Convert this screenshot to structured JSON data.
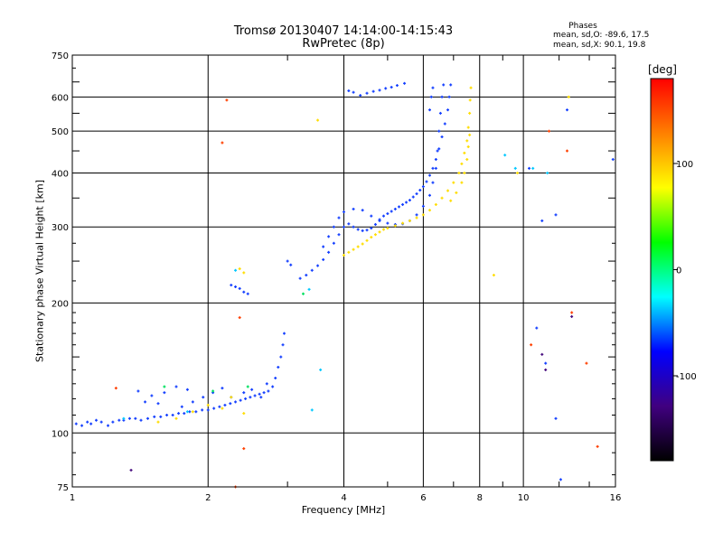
{
  "header": {
    "title_line1": "Tromsø 20130407 14:14:00-14:15:43",
    "title_line2": "RwPretec (8p)"
  },
  "stats": {
    "heading": "Phases",
    "o_line": "mean, sd,O: -89.6, 17.5",
    "x_line": "mean, sd,X:  90.1, 19.8"
  },
  "colorbar": {
    "title": "[deg]",
    "ticks": [
      100,
      0,
      -100
    ],
    "range": [
      -180,
      180
    ],
    "colors": [
      "#ff0000",
      "#ff8000",
      "#ffff00",
      "#00ff00",
      "#00ffff",
      "#0000ff",
      "#400080",
      "#000000"
    ]
  },
  "chart_data": {
    "type": "scatter",
    "title": "Tromsø 20130407 14:14:00-14:15:43",
    "subtitle": "RwPretec (8p)",
    "xlabel": "Frequency [MHz]",
    "ylabel": "Stationary phase Virtual Height [km]",
    "xscale": "log",
    "yscale": "log",
    "xlim": [
      1,
      16
    ],
    "ylim": [
      75,
      750
    ],
    "xticks": [
      1,
      2,
      4,
      6,
      8,
      10,
      16
    ],
    "xtick_labels": [
      "1",
      "2",
      "4",
      "6",
      "8",
      "10",
      "16"
    ],
    "yticks": [
      75,
      100,
      200,
      300,
      400,
      500,
      600,
      750
    ],
    "ytick_labels": [
      "75",
      "100",
      "200",
      "300",
      "400",
      "500",
      "600",
      "750"
    ],
    "grid": true,
    "colorbar_label": "[deg]",
    "colorbar_range": [
      -180,
      180
    ],
    "series": [
      {
        "mode": "O",
        "color": "#1540ff",
        "points": [
          [
            1.02,
            105
          ],
          [
            1.05,
            104
          ],
          [
            1.08,
            106
          ],
          [
            1.1,
            105
          ],
          [
            1.13,
            107
          ],
          [
            1.16,
            106
          ],
          [
            1.2,
            104
          ],
          [
            1.23,
            106
          ],
          [
            1.27,
            107
          ],
          [
            1.3,
            107
          ],
          [
            1.34,
            108
          ],
          [
            1.38,
            108
          ],
          [
            1.42,
            107
          ],
          [
            1.47,
            108
          ],
          [
            1.52,
            109
          ],
          [
            1.57,
            109
          ],
          [
            1.62,
            110
          ],
          [
            1.67,
            110
          ],
          [
            1.72,
            111
          ],
          [
            1.77,
            111
          ],
          [
            1.82,
            112
          ],
          [
            1.88,
            112
          ],
          [
            1.94,
            113
          ],
          [
            2.0,
            113
          ],
          [
            2.06,
            114
          ],
          [
            2.12,
            115
          ],
          [
            2.18,
            116
          ],
          [
            2.24,
            117
          ],
          [
            2.3,
            118
          ],
          [
            2.36,
            119
          ],
          [
            2.42,
            120
          ],
          [
            2.48,
            121
          ],
          [
            2.54,
            122
          ],
          [
            2.6,
            123
          ],
          [
            2.66,
            124
          ],
          [
            2.72,
            125
          ],
          [
            2.78,
            128
          ],
          [
            2.82,
            134
          ],
          [
            2.86,
            142
          ],
          [
            2.9,
            150
          ],
          [
            2.93,
            160
          ],
          [
            2.95,
            170
          ],
          [
            1.4,
            125
          ],
          [
            1.5,
            122
          ],
          [
            1.6,
            124
          ],
          [
            1.7,
            128
          ],
          [
            1.8,
            126
          ],
          [
            1.95,
            121
          ],
          [
            2.05,
            124
          ],
          [
            2.15,
            127
          ],
          [
            2.25,
            121
          ],
          [
            2.4,
            124
          ],
          [
            2.5,
            126
          ],
          [
            2.62,
            121
          ],
          [
            2.7,
            130
          ],
          [
            1.45,
            118
          ],
          [
            1.55,
            117
          ],
          [
            1.75,
            115
          ],
          [
            1.85,
            118
          ],
          [
            2.25,
            220
          ],
          [
            2.3,
            218
          ],
          [
            2.35,
            216
          ],
          [
            2.4,
            212
          ],
          [
            2.45,
            210
          ],
          [
            3.0,
            250
          ],
          [
            3.05,
            245
          ],
          [
            3.2,
            228
          ],
          [
            3.3,
            232
          ],
          [
            3.4,
            238
          ],
          [
            3.5,
            244
          ],
          [
            3.6,
            252
          ],
          [
            3.7,
            262
          ],
          [
            3.8,
            275
          ],
          [
            3.9,
            288
          ],
          [
            4.0,
            300
          ],
          [
            4.1,
            305
          ],
          [
            4.2,
            300
          ],
          [
            4.3,
            296
          ],
          [
            4.4,
            294
          ],
          [
            4.5,
            295
          ],
          [
            4.6,
            298
          ],
          [
            4.7,
            304
          ],
          [
            4.8,
            312
          ],
          [
            4.9,
            318
          ],
          [
            5.0,
            322
          ],
          [
            5.1,
            326
          ],
          [
            5.2,
            330
          ],
          [
            5.3,
            334
          ],
          [
            5.4,
            338
          ],
          [
            5.5,
            342
          ],
          [
            5.6,
            346
          ],
          [
            5.7,
            352
          ],
          [
            5.8,
            358
          ],
          [
            5.9,
            365
          ],
          [
            6.0,
            372
          ],
          [
            6.1,
            382
          ],
          [
            6.2,
            395
          ],
          [
            6.3,
            410
          ],
          [
            6.4,
            430
          ],
          [
            6.5,
            455
          ],
          [
            6.6,
            485
          ],
          [
            6.7,
            520
          ],
          [
            6.8,
            560
          ],
          [
            6.85,
            600
          ],
          [
            6.9,
            640
          ],
          [
            3.6,
            270
          ],
          [
            3.7,
            285
          ],
          [
            3.8,
            300
          ],
          [
            3.9,
            315
          ],
          [
            4.0,
            325
          ],
          [
            4.2,
            330
          ],
          [
            4.4,
            328
          ],
          [
            4.6,
            318
          ],
          [
            4.8,
            310
          ],
          [
            5.0,
            306
          ],
          [
            5.2,
            304
          ],
          [
            5.4,
            305
          ],
          [
            5.6,
            310
          ],
          [
            5.8,
            320
          ],
          [
            6.0,
            335
          ],
          [
            6.2,
            355
          ],
          [
            6.3,
            380
          ],
          [
            6.4,
            410
          ],
          [
            6.45,
            450
          ],
          [
            6.5,
            500
          ],
          [
            6.55,
            550
          ],
          [
            6.6,
            600
          ],
          [
            6.65,
            640
          ],
          [
            6.2,
            560
          ],
          [
            6.25,
            600
          ],
          [
            6.3,
            630
          ],
          [
            4.1,
            620
          ],
          [
            4.2,
            615
          ],
          [
            4.35,
            605
          ],
          [
            4.5,
            612
          ],
          [
            4.65,
            618
          ],
          [
            4.8,
            622
          ],
          [
            4.95,
            628
          ],
          [
            5.1,
            632
          ],
          [
            5.25,
            638
          ],
          [
            5.45,
            645
          ],
          [
            11.8,
            108
          ],
          [
            10.7,
            175
          ],
          [
            11.2,
            145
          ],
          [
            12.1,
            78
          ],
          [
            12.5,
            560
          ],
          [
            15.8,
            430
          ],
          [
            11.0,
            310
          ],
          [
            11.8,
            320
          ],
          [
            10.3,
            410
          ]
        ]
      },
      {
        "mode": "X",
        "color": "#ffdd00",
        "points": [
          [
            4.0,
            258
          ],
          [
            4.1,
            262
          ],
          [
            4.2,
            266
          ],
          [
            4.3,
            270
          ],
          [
            4.4,
            274
          ],
          [
            4.5,
            279
          ],
          [
            4.6,
            284
          ],
          [
            4.7,
            288
          ],
          [
            4.8,
            292
          ],
          [
            4.9,
            296
          ],
          [
            5.0,
            298
          ],
          [
            5.2,
            302
          ],
          [
            5.4,
            306
          ],
          [
            5.6,
            310
          ],
          [
            5.8,
            315
          ],
          [
            6.0,
            320
          ],
          [
            6.2,
            328
          ],
          [
            6.4,
            338
          ],
          [
            6.6,
            350
          ],
          [
            6.8,
            364
          ],
          [
            7.0,
            380
          ],
          [
            7.2,
            400
          ],
          [
            7.3,
            420
          ],
          [
            7.4,
            445
          ],
          [
            7.5,
            475
          ],
          [
            7.55,
            510
          ],
          [
            7.6,
            550
          ],
          [
            7.62,
            590
          ],
          [
            7.65,
            630
          ],
          [
            6.9,
            345
          ],
          [
            7.1,
            360
          ],
          [
            7.3,
            380
          ],
          [
            7.4,
            400
          ],
          [
            7.5,
            430
          ],
          [
            7.55,
            460
          ],
          [
            7.6,
            490
          ],
          [
            1.55,
            106
          ],
          [
            1.7,
            108
          ],
          [
            1.85,
            112
          ],
          [
            2.0,
            116
          ],
          [
            2.15,
            114
          ],
          [
            2.25,
            121
          ],
          [
            2.4,
            111
          ],
          [
            2.35,
            240
          ],
          [
            2.4,
            235
          ],
          [
            3.5,
            530
          ],
          [
            9.7,
            400
          ],
          [
            8.6,
            232
          ],
          [
            12.6,
            600
          ]
        ]
      },
      {
        "mode": "scattered",
        "color": "#ff4000",
        "points": [
          [
            1.25,
            127
          ],
          [
            2.15,
            470
          ],
          [
            2.2,
            590
          ],
          [
            2.35,
            185
          ],
          [
            2.4,
            92
          ],
          [
            2.3,
            75
          ],
          [
            12.8,
            190
          ],
          [
            14.6,
            93
          ],
          [
            13.8,
            145
          ],
          [
            10.4,
            160
          ],
          [
            11.4,
            500
          ],
          [
            12.5,
            450
          ]
        ]
      },
      {
        "mode": "scattered",
        "color": "#00c8ff",
        "points": [
          [
            2.3,
            238
          ],
          [
            3.35,
            215
          ],
          [
            3.55,
            140
          ],
          [
            3.4,
            113
          ],
          [
            9.1,
            440
          ],
          [
            9.6,
            410
          ],
          [
            10.5,
            410
          ],
          [
            11.3,
            400
          ],
          [
            1.8,
            112
          ],
          [
            1.3,
            108
          ]
        ]
      },
      {
        "mode": "scattered",
        "color": "#00e060",
        "points": [
          [
            2.05,
            125
          ],
          [
            2.45,
            128
          ],
          [
            3.25,
            210
          ],
          [
            1.6,
            128
          ]
        ]
      },
      {
        "mode": "scattered",
        "color": "#4a1080",
        "points": [
          [
            11.0,
            152
          ],
          [
            11.2,
            140
          ],
          [
            12.8,
            186
          ],
          [
            1.35,
            82
          ]
        ]
      }
    ]
  }
}
